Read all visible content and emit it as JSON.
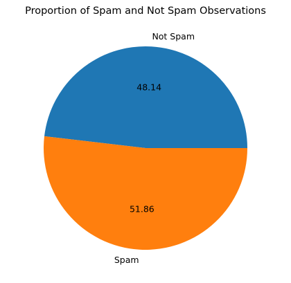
{
  "chart_data": {
    "type": "pie",
    "title": "Proportion of Spam and Not Spam Observations",
    "slices": [
      {
        "label": "Not Spam",
        "value": 48.14,
        "value_label": "48.14",
        "color": "#1f77b4"
      },
      {
        "label": "Spam",
        "value": 51.86,
        "value_label": "51.86",
        "color": "#ff7f0e"
      }
    ],
    "legend": "none"
  }
}
